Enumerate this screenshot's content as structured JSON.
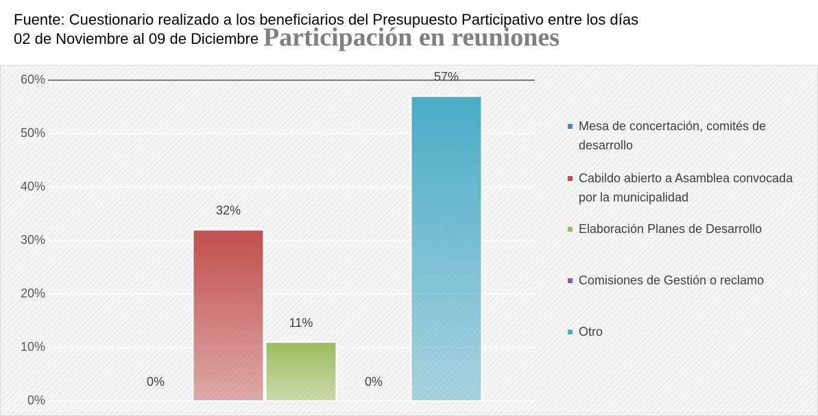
{
  "chart_data": {
    "type": "bar",
    "title": "Participación en reuniones",
    "source": [
      "Fuente: Cuestionario realizado a los beneficiarios del Presupuesto Participativo entre los días",
      "02 de Noviembre al 09 de Diciembre"
    ],
    "categories": [
      null
    ],
    "series": [
      {
        "name": "Mesa de concertación, comités de desarrollo",
        "color": "#4f81bd",
        "values": [
          0
        ],
        "value_labels": [
          "0%"
        ]
      },
      {
        "name": "Cabildo abierto a Asamblea convocada por la municipalidad",
        "color": "#c0504d",
        "values": [
          32
        ],
        "value_labels": [
          "32%"
        ]
      },
      {
        "name": "Elaboración Planes de Desarrollo",
        "color": "#9bbb59",
        "values": [
          11
        ],
        "value_labels": [
          "11%"
        ]
      },
      {
        "name": "Comisiones de Gestión o reclamo",
        "color": "#8064a2",
        "values": [
          0
        ],
        "value_labels": [
          "0%"
        ]
      },
      {
        "name": "Otro",
        "color": "#4bacc6",
        "values": [
          57
        ],
        "value_labels": [
          "57%"
        ]
      }
    ],
    "ylim": [
      0,
      60
    ],
    "yticks": [
      {
        "value": 0,
        "label": "0%"
      },
      {
        "value": 10,
        "label": "10%"
      },
      {
        "value": 20,
        "label": "20%"
      },
      {
        "value": 30,
        "label": "30%"
      },
      {
        "value": 40,
        "label": "40%"
      },
      {
        "value": 50,
        "label": "50%"
      },
      {
        "value": 60,
        "label": "60%"
      }
    ],
    "grid": true,
    "legend": "right"
  }
}
